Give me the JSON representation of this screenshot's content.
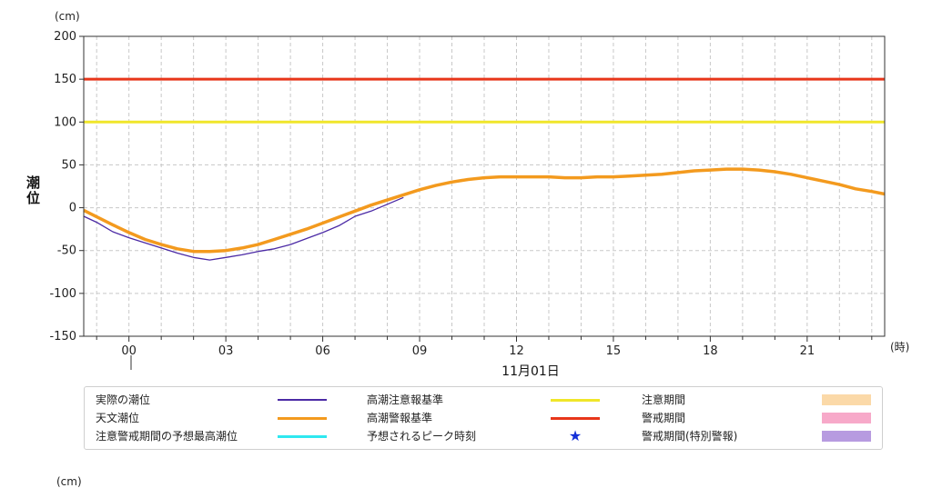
{
  "chart_data": {
    "type": "line",
    "y_unit": "(cm)",
    "ylabel": "潮位",
    "ylim": [
      -150,
      200
    ],
    "yticks": [
      200,
      150,
      100,
      50,
      0,
      -50,
      -100,
      -150
    ],
    "x_unit": "(時)",
    "xlim": [
      -1.4,
      23.4
    ],
    "xticks": [
      {
        "h": 0,
        "label": "00"
      },
      {
        "h": 3,
        "label": "03"
      },
      {
        "h": 6,
        "label": "06"
      },
      {
        "h": 9,
        "label": "09"
      },
      {
        "h": 12,
        "label": "12"
      },
      {
        "h": 15,
        "label": "15"
      },
      {
        "h": 18,
        "label": "18"
      },
      {
        "h": 21,
        "label": "21"
      }
    ],
    "date_label": "11月01日",
    "grid": true,
    "thresholds": [
      {
        "name": "高潮警報基準",
        "value": 150,
        "color": "#e8361a"
      },
      {
        "name": "高潮注意報基準",
        "value": 100,
        "color": "#f0e62a"
      }
    ],
    "series": [
      {
        "name": "天文潮位",
        "color": "#f39a1e",
        "x": [
          -1.4,
          -0.5,
          0,
          0.5,
          1,
          1.5,
          2,
          2.5,
          3,
          3.5,
          4,
          4.5,
          5,
          5.5,
          6,
          6.5,
          7,
          7.5,
          8,
          8.5,
          9,
          9.5,
          10,
          10.5,
          11,
          11.5,
          12,
          12.5,
          13,
          13.5,
          14,
          14.5,
          15,
          15.5,
          16,
          16.5,
          17,
          17.5,
          18,
          18.5,
          19,
          19.5,
          20,
          20.5,
          21,
          21.5,
          22,
          22.5,
          23,
          23.4
        ],
        "values": [
          -3,
          -20,
          -29,
          -37,
          -43,
          -48,
          -51,
          -51,
          -50,
          -47,
          -43,
          -37,
          -31,
          -25,
          -18,
          -11,
          -4,
          3,
          9,
          15,
          21,
          26,
          30,
          33,
          35,
          36,
          36,
          36,
          36,
          35,
          35,
          36,
          36,
          37,
          38,
          39,
          41,
          43,
          44,
          45,
          45,
          44,
          42,
          39,
          35,
          31,
          27,
          22,
          19,
          16
        ]
      },
      {
        "name": "実際の潮位",
        "color": "#4b2aa5",
        "x": [
          -1.4,
          -1,
          -0.5,
          0,
          0.5,
          1,
          1.5,
          2,
          2.5,
          3,
          3.5,
          4,
          4.5,
          5,
          5.5,
          6,
          6.5,
          7,
          7.5,
          8,
          8.5
        ],
        "values": [
          -10,
          -17,
          -28,
          -35,
          -41,
          -47,
          -53,
          -58,
          -61,
          -58,
          -55,
          -51,
          -48,
          -43,
          -36,
          -29,
          -21,
          -10,
          -4,
          4,
          12
        ]
      }
    ],
    "legend": [
      {
        "label": "実際の潮位",
        "kind": "line",
        "color": "#4b2aa5"
      },
      {
        "label": "高潮注意報基準",
        "kind": "line",
        "color": "#f0e62a"
      },
      {
        "label": "注意期間",
        "kind": "rect",
        "color": "#fbd9a8"
      },
      {
        "label": "天文潮位",
        "kind": "line",
        "color": "#f39a1e"
      },
      {
        "label": "高潮警報基準",
        "kind": "line",
        "color": "#e8361a"
      },
      {
        "label": "警戒期間",
        "kind": "rect",
        "color": "#f7a9c9"
      },
      {
        "label": "注意警戒期間の予想最高潮位",
        "kind": "line",
        "color": "#2ee8f0"
      },
      {
        "label": "予想されるピーク時刻",
        "kind": "star",
        "color": "#1430d8"
      },
      {
        "label": "警戒期間(特別警報)",
        "kind": "rect",
        "color": "#b79be0"
      }
    ]
  },
  "next_chart_unit": "(cm)"
}
